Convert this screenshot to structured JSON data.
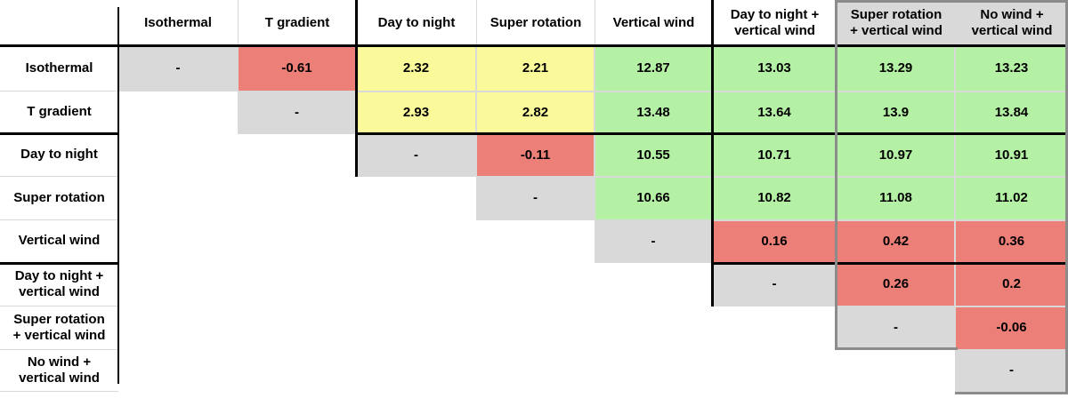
{
  "table": {
    "corner_label": "",
    "diagonal_marker": "-",
    "columns": [
      {
        "label": "Isothermal",
        "highlighted": false
      },
      {
        "label": "T gradient",
        "highlighted": false
      },
      {
        "label": "Day to night",
        "highlighted": false
      },
      {
        "label": "Super rotation",
        "highlighted": false
      },
      {
        "label": "Vertical wind",
        "highlighted": false
      },
      {
        "label": "Day to night +\nvertical wind",
        "highlighted": false
      },
      {
        "label": "Super rotation\n+ vertical wind",
        "highlighted": true
      },
      {
        "label": "No wind +\nvertical wind",
        "highlighted": true
      }
    ],
    "rows": [
      {
        "label": "Isothermal",
        "cells": [
          {
            "col": 0,
            "value": "-",
            "color": "gray"
          },
          {
            "col": 1,
            "value": "-0.61",
            "color": "red"
          },
          {
            "col": 2,
            "value": "2.32",
            "color": "yellow"
          },
          {
            "col": 3,
            "value": "2.21",
            "color": "yellow"
          },
          {
            "col": 4,
            "value": "12.87",
            "color": "green"
          },
          {
            "col": 5,
            "value": "13.03",
            "color": "green"
          },
          {
            "col": 6,
            "value": "13.29",
            "color": "green"
          },
          {
            "col": 7,
            "value": "13.23",
            "color": "green"
          }
        ]
      },
      {
        "label": "T gradient",
        "cells": [
          {
            "col": 1,
            "value": "-",
            "color": "gray"
          },
          {
            "col": 2,
            "value": "2.93",
            "color": "yellow"
          },
          {
            "col": 3,
            "value": "2.82",
            "color": "yellow"
          },
          {
            "col": 4,
            "value": "13.48",
            "color": "green"
          },
          {
            "col": 5,
            "value": "13.64",
            "color": "green"
          },
          {
            "col": 6,
            "value": "13.9",
            "color": "green"
          },
          {
            "col": 7,
            "value": "13.84",
            "color": "green"
          }
        ]
      },
      {
        "label": "Day to night",
        "cells": [
          {
            "col": 2,
            "value": "-",
            "color": "gray"
          },
          {
            "col": 3,
            "value": "-0.11",
            "color": "red"
          },
          {
            "col": 4,
            "value": "10.55",
            "color": "green"
          },
          {
            "col": 5,
            "value": "10.71",
            "color": "green"
          },
          {
            "col": 6,
            "value": "10.97",
            "color": "green"
          },
          {
            "col": 7,
            "value": "10.91",
            "color": "green"
          }
        ]
      },
      {
        "label": "Super rotation",
        "cells": [
          {
            "col": 3,
            "value": "-",
            "color": "gray"
          },
          {
            "col": 4,
            "value": "10.66",
            "color": "green"
          },
          {
            "col": 5,
            "value": "10.82",
            "color": "green"
          },
          {
            "col": 6,
            "value": "11.08",
            "color": "green"
          },
          {
            "col": 7,
            "value": "11.02",
            "color": "green"
          }
        ]
      },
      {
        "label": "Vertical wind",
        "cells": [
          {
            "col": 4,
            "value": "-",
            "color": "gray"
          },
          {
            "col": 5,
            "value": "0.16",
            "color": "red"
          },
          {
            "col": 6,
            "value": "0.42",
            "color": "red"
          },
          {
            "col": 7,
            "value": "0.36",
            "color": "red"
          }
        ]
      },
      {
        "label": "Day to night +\nvertical wind",
        "cells": [
          {
            "col": 5,
            "value": "-",
            "color": "gray"
          },
          {
            "col": 6,
            "value": "0.26",
            "color": "red"
          },
          {
            "col": 7,
            "value": "0.2",
            "color": "red"
          }
        ]
      },
      {
        "label": "Super rotation\n+ vertical wind",
        "cells": [
          {
            "col": 6,
            "value": "-",
            "color": "gray"
          },
          {
            "col": 7,
            "value": "-0.06",
            "color": "red"
          }
        ]
      },
      {
        "label": "No wind +\nvertical wind",
        "cells": [
          {
            "col": 7,
            "value": "-",
            "color": "gray"
          }
        ]
      }
    ],
    "colors": {
      "red": "#ec7f77",
      "yellow": "#fafa9b",
      "green": "#b5f1a4",
      "gray": "#d9d9d9",
      "header_highlight_bg": "#d9d9d9",
      "group_divider": "#000000",
      "highlight_box_border": "#8c8c8c"
    }
  },
  "chart_data": {
    "type": "heatmap",
    "rows": [
      "Isothermal",
      "T gradient",
      "Day to night",
      "Super rotation",
      "Vertical wind",
      "Day to night + vertical wind",
      "Super rotation + vertical wind",
      "No wind + vertical wind"
    ],
    "columns": [
      "Isothermal",
      "T gradient",
      "Day to night",
      "Super rotation",
      "Vertical wind",
      "Day to night + vertical wind",
      "Super rotation + vertical wind",
      "No wind + vertical wind"
    ],
    "values": [
      [
        null,
        -0.61,
        2.32,
        2.21,
        12.87,
        13.03,
        13.29,
        13.23
      ],
      [
        null,
        null,
        2.93,
        2.82,
        13.48,
        13.64,
        13.9,
        13.84
      ],
      [
        null,
        null,
        null,
        -0.11,
        10.55,
        10.71,
        10.97,
        10.91
      ],
      [
        null,
        null,
        null,
        null,
        10.66,
        10.82,
        11.08,
        11.02
      ],
      [
        null,
        null,
        null,
        null,
        null,
        0.16,
        0.42,
        0.36
      ],
      [
        null,
        null,
        null,
        null,
        null,
        null,
        0.26,
        0.2
      ],
      [
        null,
        null,
        null,
        null,
        null,
        null,
        null,
        -0.06
      ],
      [
        null,
        null,
        null,
        null,
        null,
        null,
        null,
        null
      ]
    ],
    "diagonal_marker": "-",
    "upper_triangle_only": true,
    "cell_color_map": {
      "red": "#ec7f77",
      "yellow": "#fafa9b",
      "green": "#b5f1a4",
      "diagonal_gray": "#d9d9d9"
    },
    "highlighted_columns": [
      "Super rotation + vertical wind",
      "No wind + vertical wind"
    ],
    "group_boundaries_after": [
      "T gradient",
      "Vertical wind"
    ]
  }
}
